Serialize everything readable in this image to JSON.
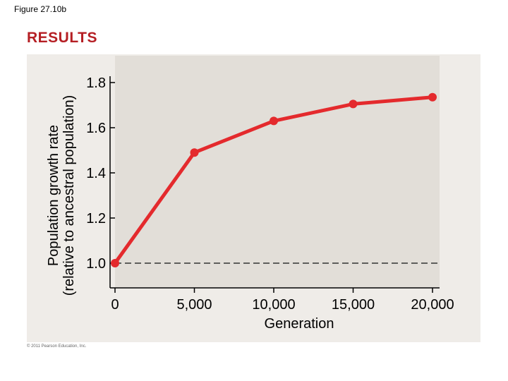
{
  "figure_label": "Figure 27.10b",
  "section_title": "RESULTS",
  "copyright": "© 2011 Pearson Education, Inc.",
  "chart_data": {
    "type": "line",
    "xlabel": "Generation",
    "ylabel_lines": [
      "Population growth rate",
      "(relative to ancestral population)"
    ],
    "x": [
      0,
      5000,
      10000,
      15000,
      20000
    ],
    "x_tick_labels": [
      "0",
      "5,000",
      "10,000",
      "15,000",
      "20,000"
    ],
    "y_ticks": [
      1.0,
      1.2,
      1.4,
      1.6,
      1.8
    ],
    "y_tick_labels": [
      "1.0",
      "1.2",
      "1.4",
      "1.6",
      "1.8"
    ],
    "xlim": [
      0,
      20000
    ],
    "ylim": [
      1.0,
      1.8
    ],
    "reference_line": 1.0,
    "series": [
      {
        "values": [
          1.0,
          1.49,
          1.63,
          1.705,
          1.735
        ],
        "color": "#e42a2d"
      }
    ],
    "grid": false
  }
}
